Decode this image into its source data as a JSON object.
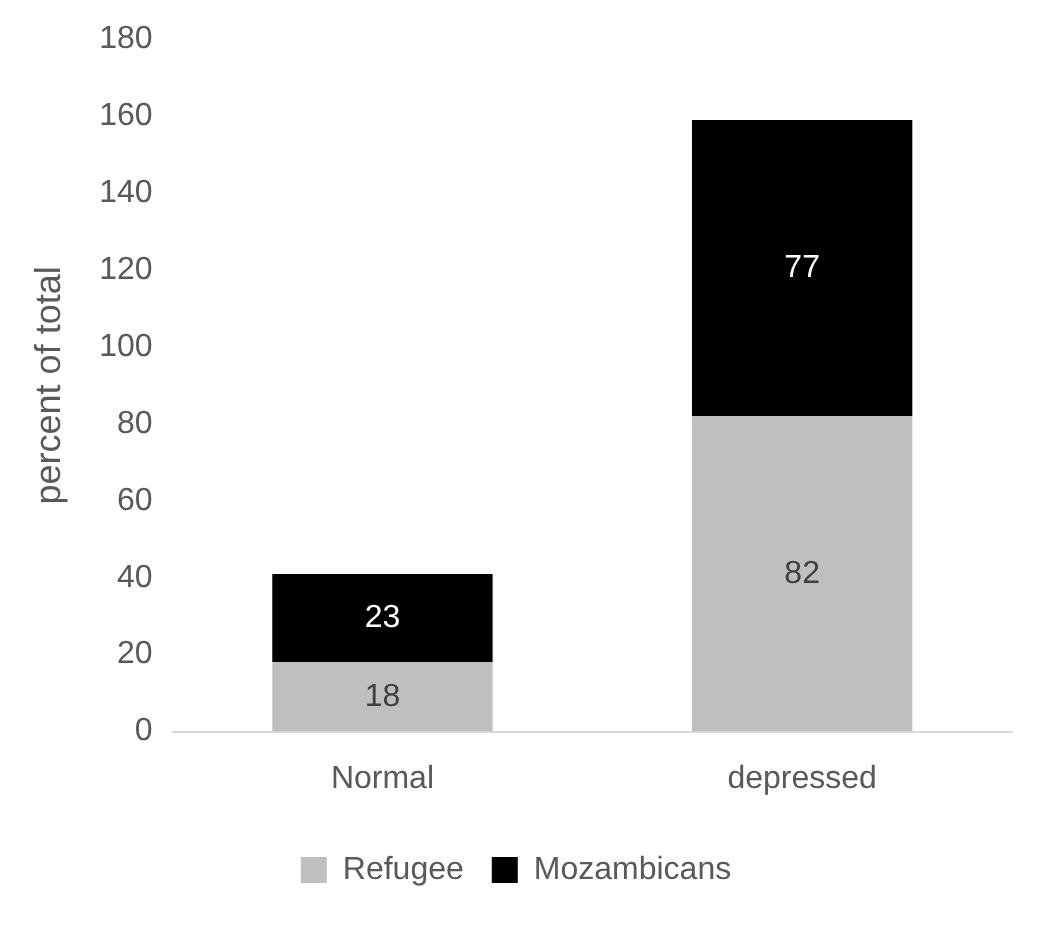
{
  "chart_data": {
    "type": "bar",
    "stacked": true,
    "ylabel": "percent of total",
    "categories": [
      "Normal",
      "depressed"
    ],
    "series": [
      {
        "name": "Refugee",
        "color": "#bfbfbf",
        "values": [
          18,
          82
        ]
      },
      {
        "name": "Mozambicans",
        "color": "#000000",
        "values": [
          23,
          77
        ]
      }
    ],
    "ylim": [
      0,
      180
    ],
    "yticks": [
      0,
      20,
      40,
      60,
      80,
      100,
      120,
      140,
      160,
      180
    ],
    "grid": false,
    "legend": "bottom",
    "data_labels": true
  }
}
